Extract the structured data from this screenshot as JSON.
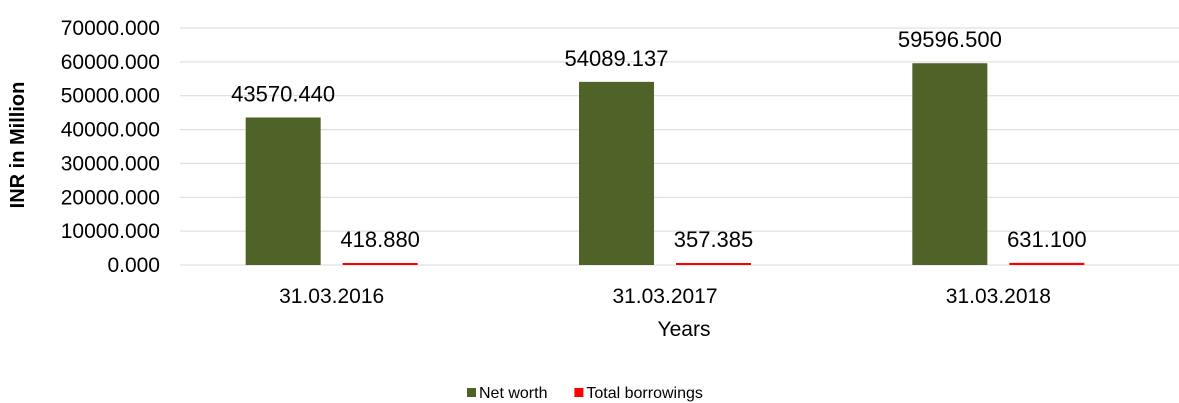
{
  "chart_data": {
    "type": "bar",
    "categories": [
      "31.03.2016",
      "31.03.2017",
      "31.03.2018"
    ],
    "series": [
      {
        "name": "Net worth",
        "color": "#4f6228",
        "values": [
          43570.44,
          54089.137,
          59596.5
        ],
        "labels": [
          "43570.440",
          "54089.137",
          "59596.500"
        ]
      },
      {
        "name": "Total borrowings",
        "color": "#ff0000",
        "values": [
          418.88,
          357.385,
          631.1
        ],
        "labels": [
          "418.880",
          "357.385",
          "631.100"
        ]
      }
    ],
    "title": "",
    "xlabel": "Years",
    "ylabel": "INR in Million",
    "ylim": [
      0,
      70000
    ],
    "yticks": [
      "0.000",
      "10000.000",
      "20000.000",
      "30000.000",
      "40000.000",
      "50000.000",
      "60000.000",
      "70000.000"
    ],
    "grid": true,
    "legend_position": "bottom"
  }
}
